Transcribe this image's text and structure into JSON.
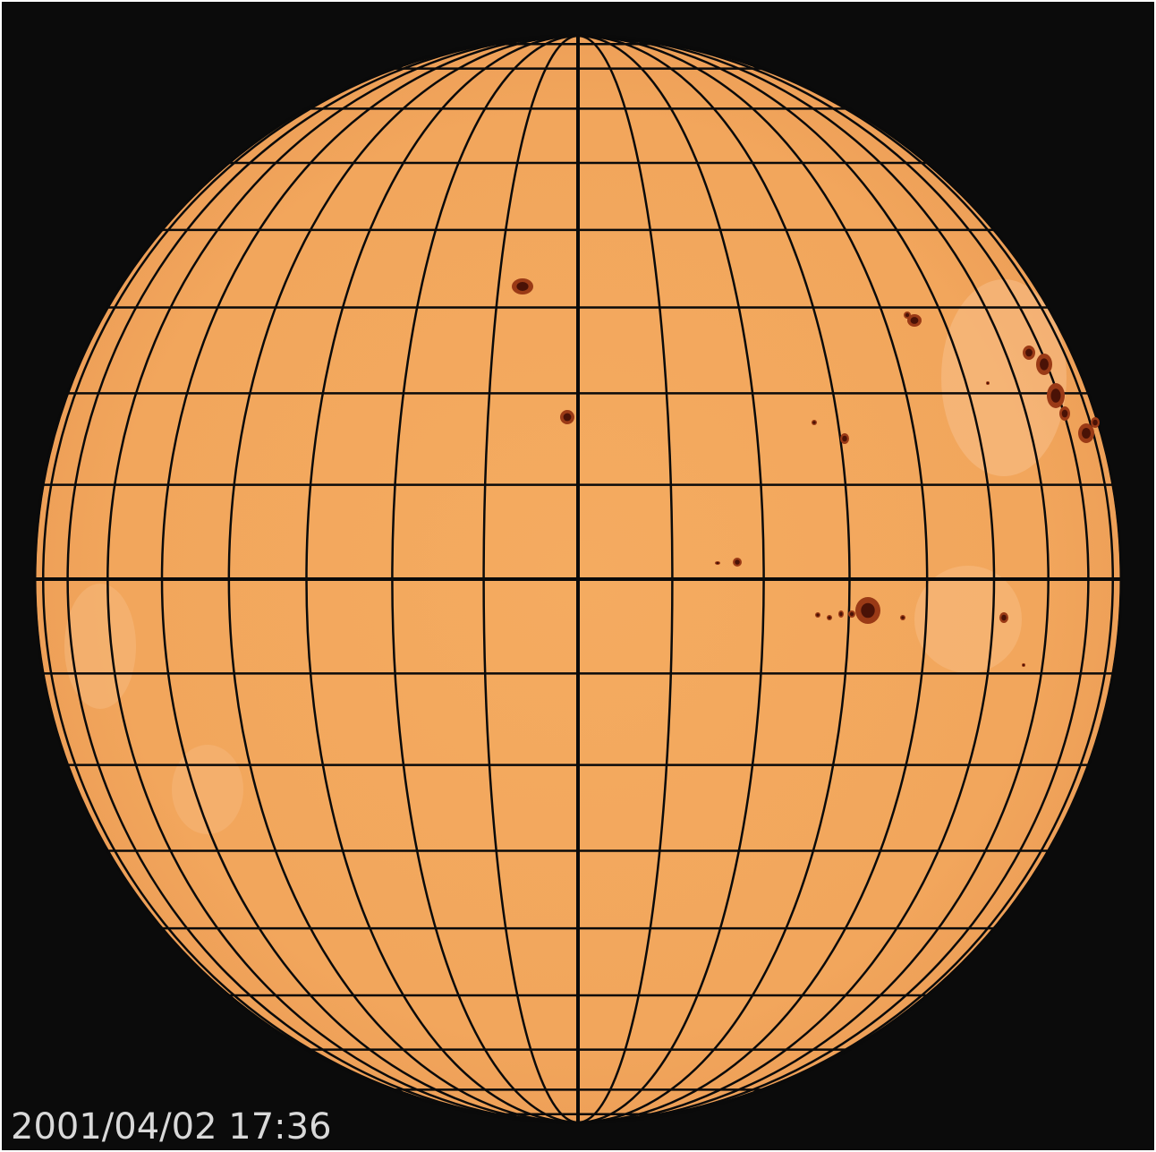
{
  "image": {
    "timestamp": "2001/04/02 17:36"
  },
  "colors": {
    "background": "#0b0b0b",
    "disk": "#f2a75e",
    "grid": "#0a0a0a",
    "sunspot_umbra": "#5a1a0a",
    "sunspot_penumbra": "#9a3a16",
    "timestamp": "#d9d9d9"
  },
  "features": {
    "sunspot_groups": 8,
    "has_lat_lon_grid": true
  }
}
